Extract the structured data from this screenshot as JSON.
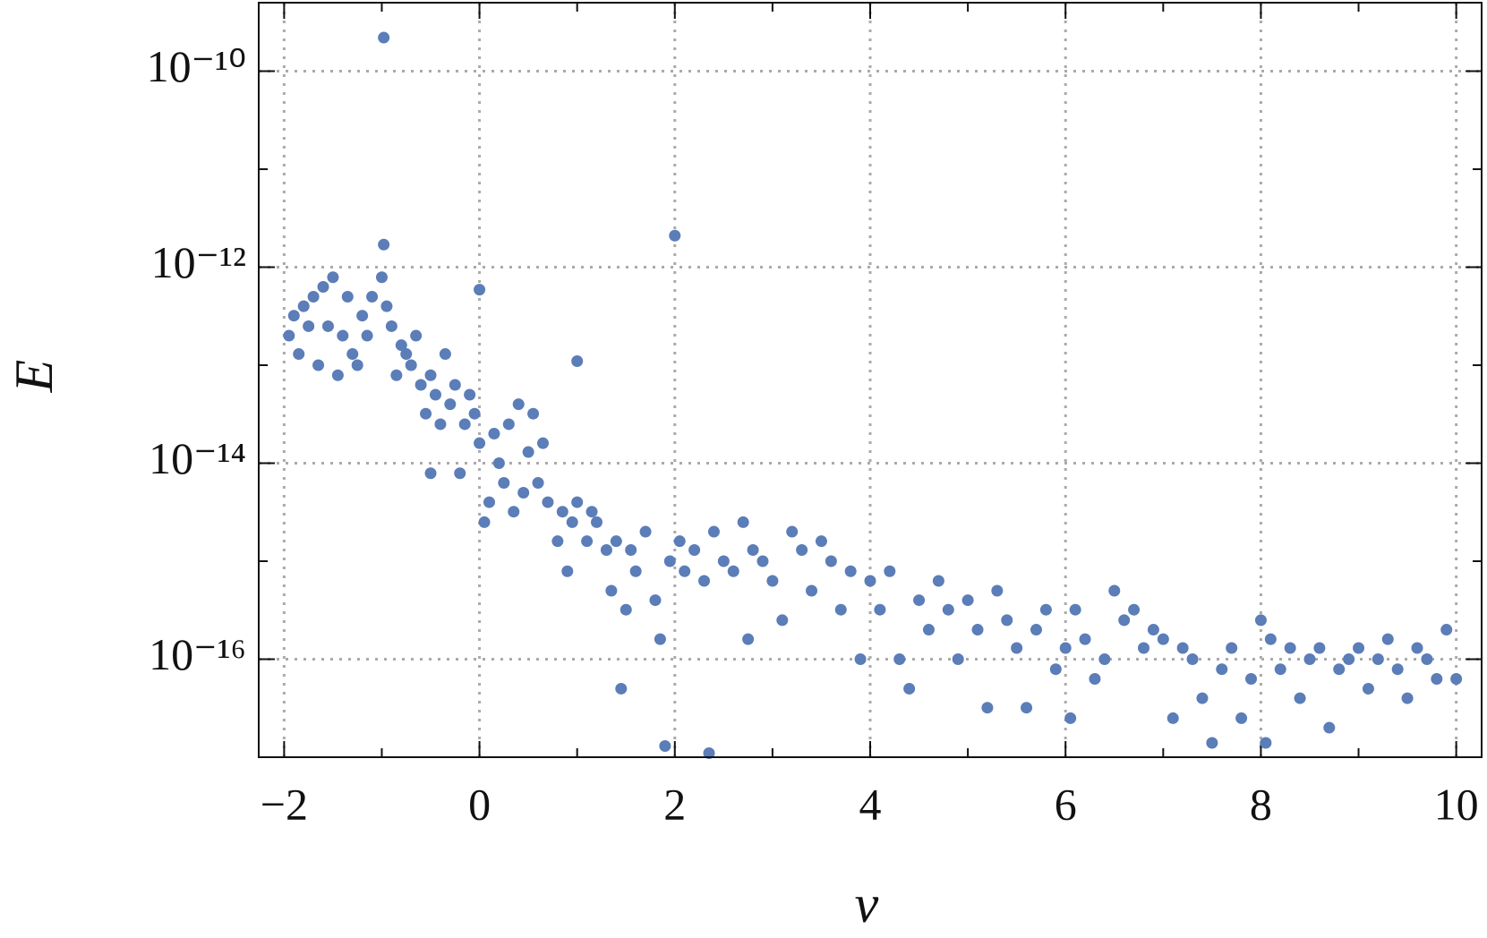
{
  "chart_data": {
    "type": "scatter",
    "x_label": "ν",
    "y_label": "E",
    "log_y": true,
    "grid": true,
    "color": "#5b7db8",
    "xlim": [
      -2.26,
      10.26
    ],
    "ylim": [
      1e-17,
      5e-10
    ],
    "xticks": [
      {
        "value": -2,
        "label": "−2"
      },
      0,
      2,
      4,
      6,
      8,
      10
    ],
    "xminorticks": [
      -1,
      1,
      3,
      5,
      7,
      9
    ],
    "yticks": [
      {
        "value": 1e-16,
        "label": "10⁻¹⁶"
      },
      {
        "value": 1e-14,
        "label": "10⁻¹⁴"
      },
      {
        "value": 1e-12,
        "label": "10⁻¹²"
      },
      {
        "value": 1e-10,
        "label": "10⁻¹⁰"
      }
    ],
    "yminorticks": [
      1e-15,
      1e-13,
      1e-11
    ],
    "x": [
      -0.98,
      2.0,
      0.0,
      1.0,
      -0.98,
      -1.95,
      -1.9,
      -1.85,
      -1.8,
      -1.75,
      -1.7,
      -1.65,
      -1.6,
      -1.55,
      -1.5,
      -1.45,
      -1.4,
      -1.35,
      -1.3,
      -1.25,
      -1.2,
      -1.15,
      -1.1,
      -1.0,
      -0.95,
      -0.9,
      -0.85,
      -0.8,
      -0.75,
      -0.7,
      -0.65,
      -0.6,
      -0.55,
      -0.5,
      -0.5,
      -0.45,
      -0.4,
      -0.35,
      -0.3,
      -0.25,
      -0.2,
      -0.15,
      -0.1,
      -0.05,
      0.0,
      0.05,
      0.1,
      0.15,
      0.2,
      0.25,
      0.3,
      0.35,
      0.4,
      0.45,
      0.5,
      0.55,
      0.6,
      0.65,
      0.7,
      0.8,
      0.85,
      0.9,
      0.95,
      1.0,
      1.1,
      1.15,
      1.2,
      1.3,
      1.35,
      1.4,
      1.45,
      1.5,
      1.55,
      1.6,
      1.7,
      1.8,
      1.85,
      1.9,
      1.95,
      2.05,
      2.1,
      2.2,
      2.3,
      2.35,
      2.4,
      2.5,
      2.6,
      2.7,
      2.75,
      2.8,
      2.9,
      3.0,
      3.1,
      3.2,
      3.3,
      3.4,
      3.5,
      3.6,
      3.7,
      3.8,
      3.9,
      4.0,
      4.1,
      4.2,
      4.3,
      4.4,
      4.5,
      4.6,
      4.7,
      4.8,
      4.9,
      5.0,
      5.1,
      5.2,
      5.3,
      5.4,
      5.5,
      5.6,
      5.7,
      5.8,
      5.9,
      6.0,
      6.05,
      6.1,
      6.2,
      6.3,
      6.4,
      6.5,
      6.6,
      6.7,
      6.8,
      6.9,
      7.0,
      7.1,
      7.2,
      7.3,
      7.4,
      7.5,
      7.6,
      7.7,
      7.8,
      7.9,
      8.0,
      8.05,
      8.1,
      8.2,
      8.3,
      8.4,
      8.5,
      8.6,
      8.7,
      8.8,
      8.9,
      9.0,
      9.1,
      9.2,
      9.3,
      9.4,
      9.5,
      9.6,
      9.7,
      9.8,
      9.9,
      10.0
    ],
    "y": [
      2.2e-10,
      2.1e-12,
      5.9e-13,
      1.1e-13,
      1.7e-12,
      2e-13,
      3.2e-13,
      1.3e-13,
      4e-13,
      2.5e-13,
      5e-13,
      1e-13,
      6.3e-13,
      2.5e-13,
      7.9e-13,
      7.9e-14,
      2e-13,
      5e-13,
      1.3e-13,
      1e-13,
      3.2e-13,
      2e-13,
      5e-13,
      7.9e-13,
      4e-13,
      2.5e-13,
      7.9e-14,
      1.6e-13,
      1.3e-13,
      1e-13,
      2e-13,
      6.3e-14,
      3.2e-14,
      7.9e-14,
      7.9e-15,
      5e-14,
      2.5e-14,
      1.3e-13,
      4e-14,
      6.3e-14,
      7.9e-15,
      2.5e-14,
      5e-14,
      3.2e-14,
      1.6e-14,
      2.5e-15,
      4e-15,
      2e-14,
      1e-14,
      6.3e-15,
      2.5e-14,
      3.2e-15,
      4e-14,
      5e-15,
      1.3e-14,
      3.2e-14,
      6.3e-15,
      1.6e-14,
      4e-15,
      1.6e-15,
      3.2e-15,
      7.9e-16,
      2.5e-15,
      4e-15,
      1.6e-15,
      3.2e-15,
      2.5e-15,
      1.3e-15,
      5e-16,
      1.6e-15,
      5e-17,
      3.2e-16,
      1.3e-15,
      7.9e-16,
      2e-15,
      4e-16,
      1.6e-16,
      1.3e-17,
      1e-15,
      1.6e-15,
      7.9e-16,
      1.3e-15,
      6.3e-16,
      1.1e-17,
      2e-15,
      1e-15,
      7.9e-16,
      2.5e-15,
      1.6e-16,
      1.3e-15,
      1e-15,
      6.3e-16,
      2.5e-16,
      2e-15,
      1.3e-15,
      5e-16,
      1.6e-15,
      1e-15,
      3.2e-16,
      7.9e-16,
      1e-16,
      6.3e-16,
      3.2e-16,
      7.9e-16,
      1e-16,
      5e-17,
      4e-16,
      2e-16,
      6.3e-16,
      3.2e-16,
      1e-16,
      4e-16,
      2e-16,
      3.2e-17,
      5e-16,
      2.5e-16,
      1.3e-16,
      3.2e-17,
      2e-16,
      3.2e-16,
      7.9e-17,
      1.3e-16,
      2.5e-17,
      3.2e-16,
      1.6e-16,
      6.3e-17,
      1e-16,
      5e-16,
      2.5e-16,
      3.2e-16,
      1.3e-16,
      2e-16,
      1.6e-16,
      2.5e-17,
      1.3e-16,
      1e-16,
      4e-17,
      1.4e-17,
      7.9e-17,
      1.3e-16,
      2.5e-17,
      6.3e-17,
      2.5e-16,
      1.4e-17,
      1.6e-16,
      7.9e-17,
      1.3e-16,
      4e-17,
      1e-16,
      1.3e-16,
      2e-17,
      7.9e-17,
      1e-16,
      1.3e-16,
      5e-17,
      1e-16,
      1.6e-16,
      7.9e-17,
      4e-17,
      1.3e-16,
      1e-16,
      6.3e-17,
      2e-16,
      6.3e-17
    ]
  }
}
